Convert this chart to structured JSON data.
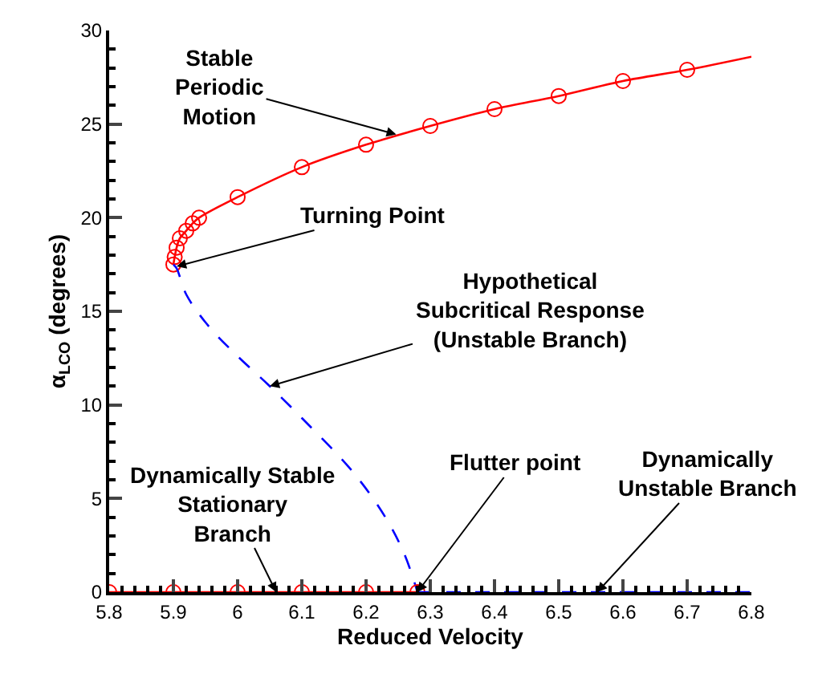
{
  "chart_data": {
    "type": "line",
    "xlabel": "Reduced Velocity",
    "ylabel": "α$_{LCO}$ (degrees)",
    "xlim": [
      5.8,
      6.8
    ],
    "xticks": [
      5.8,
      5.9,
      {
        "value": 6.0,
        "label": "6"
      },
      6.1,
      6.2,
      6.3,
      6.4,
      6.5,
      6.6,
      6.7,
      6.8
    ],
    "ylim": [
      0,
      30
    ],
    "yticks": [
      0,
      5,
      10,
      15,
      20,
      25,
      30
    ],
    "series": [
      {
        "color": "#ff0000",
        "line_style": "solid",
        "marker": "none",
        "x": [
          5.9,
          5.902,
          5.905,
          5.91,
          5.92,
          5.93,
          5.94,
          6.0,
          6.1,
          6.2,
          6.3,
          6.4,
          6.5,
          6.6,
          6.7,
          6.8
        ],
        "values": [
          17.5,
          17.9,
          18.4,
          18.9,
          19.3,
          19.7,
          20.0,
          21.1,
          22.7,
          23.9,
          24.9,
          25.8,
          26.5,
          27.3,
          27.9,
          28.6
        ]
      },
      {
        "type": "scatter",
        "color": "#ff0000",
        "marker": "circle",
        "x": [
          5.9,
          5.902,
          5.905,
          5.91,
          5.92,
          5.93,
          5.94,
          6.0,
          6.1,
          6.2,
          6.3,
          6.4,
          6.5,
          6.6,
          6.7
        ],
        "values": [
          17.5,
          17.9,
          18.4,
          18.9,
          19.3,
          19.7,
          20.0,
          21.1,
          22.7,
          23.9,
          24.9,
          25.8,
          26.5,
          27.3,
          27.9
        ]
      },
      {
        "color": "#0000ff",
        "line_style": "dashed",
        "marker": "none",
        "x": [
          5.9,
          5.905,
          5.92,
          5.955,
          6.0,
          6.047,
          6.1,
          6.18,
          6.23,
          6.26,
          6.28
        ],
        "values": [
          17.5,
          17.3,
          15.9,
          14.2,
          12.6,
          11.1,
          9.3,
          6.4,
          4.0,
          2.0,
          0
        ]
      },
      {
        "color": "#ff0000",
        "line_style": "solid",
        "marker": "circle",
        "x": [
          5.8,
          5.9,
          6.0,
          6.1,
          6.2,
          6.28
        ],
        "values": [
          0,
          0,
          0,
          0,
          0,
          0
        ]
      },
      {
        "color": "#0000ff",
        "line_style": "dashed",
        "marker": "none",
        "x": [
          6.28,
          6.8
        ],
        "values": [
          0,
          0
        ]
      }
    ],
    "annotations": [
      {
        "text": "Stable\nPeriodic\nMotion",
        "x": 6.247,
        "y": 24.45
      },
      {
        "text": "Turning Point",
        "x": 5.905,
        "y": 17.4
      },
      {
        "text": "Hypothetical\nSubcritical Response\n(Unstable Branch)",
        "x": 6.05,
        "y": 11.0
      },
      {
        "text": "Dynamically Stable\nStationary\nBranch",
        "x": 6.06,
        "y": 0
      },
      {
        "text": "Flutter point",
        "x": 6.28,
        "y": 0
      },
      {
        "text": "Dynamically\nUnstable Branch",
        "x": 6.56,
        "y": 0
      }
    ]
  }
}
